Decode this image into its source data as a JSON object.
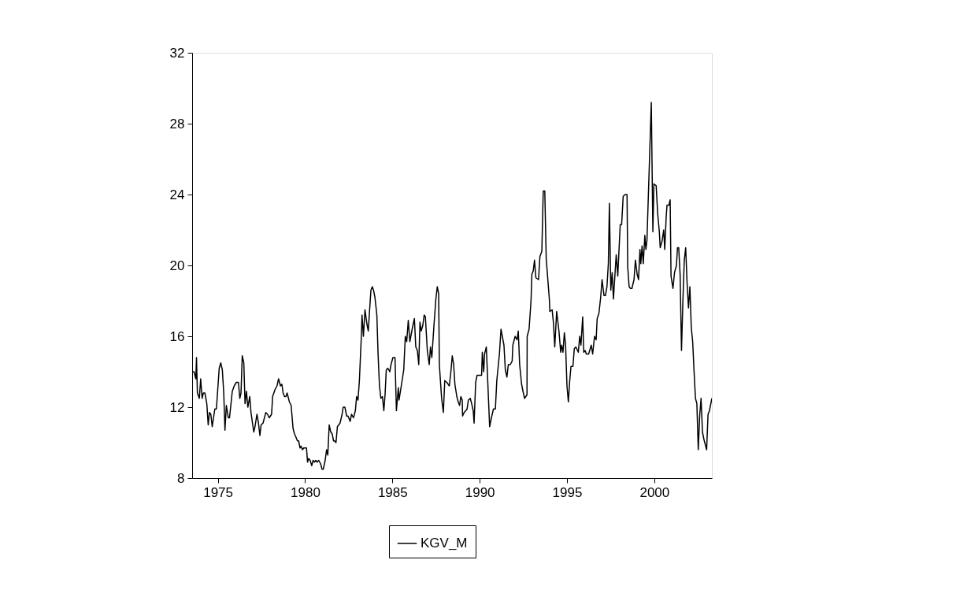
{
  "chart_data": {
    "type": "line",
    "xlim": [
      1973.53,
      2003.3
    ],
    "xticks": [
      1975,
      1980,
      1985,
      1990,
      1995,
      2000
    ],
    "ylim": [
      8,
      32
    ],
    "yticks": [
      8,
      12,
      16,
      20,
      24,
      28,
      32
    ],
    "grid": false,
    "legend": "bottom",
    "line_style": "solid",
    "series": [
      {
        "name": "KGV_M",
        "color": "#000000",
        "x": [
          1973.53,
          1973.64,
          1973.74,
          1973.78,
          1973.83,
          1973.94,
          1974.02,
          1974.1,
          1974.17,
          1974.26,
          1974.37,
          1974.45,
          1974.52,
          1974.6,
          1974.68,
          1974.83,
          1974.92,
          1975.08,
          1975.17,
          1975.26,
          1975.34,
          1975.41,
          1975.49,
          1975.6,
          1975.67,
          1975.83,
          1975.94,
          1976.06,
          1976.18,
          1976.26,
          1976.33,
          1976.4,
          1976.49,
          1976.56,
          1976.64,
          1976.72,
          1976.83,
          1976.9,
          1977.06,
          1977.13,
          1977.24,
          1977.33,
          1977.41,
          1977.48,
          1977.59,
          1977.75,
          1977.85,
          1977.94,
          1978.08,
          1978.14,
          1978.28,
          1978.39,
          1978.48,
          1978.59,
          1978.67,
          1978.74,
          1978.82,
          1978.9,
          1978.97,
          1979.1,
          1979.2,
          1979.31,
          1979.39,
          1979.48,
          1979.56,
          1979.63,
          1979.71,
          1979.77,
          1979.85,
          1979.92,
          1980.0,
          1980.08,
          1980.14,
          1980.2,
          1980.29,
          1980.38,
          1980.46,
          1980.54,
          1980.61,
          1980.69,
          1980.78,
          1980.89,
          1980.97,
          1981.04,
          1981.15,
          1981.23,
          1981.3,
          1981.38,
          1981.47,
          1981.55,
          1981.63,
          1981.69,
          1981.77,
          1981.85,
          1982.0,
          1982.12,
          1982.18,
          1982.28,
          1982.38,
          1982.46,
          1982.58,
          1982.66,
          1982.77,
          1982.88,
          1982.95,
          1983.03,
          1983.11,
          1983.23,
          1983.26,
          1983.34,
          1983.43,
          1983.54,
          1983.62,
          1983.69,
          1983.77,
          1983.85,
          1983.92,
          1984.0,
          1984.11,
          1984.18,
          1984.26,
          1984.34,
          1984.43,
          1984.51,
          1984.58,
          1984.65,
          1984.74,
          1984.85,
          1984.92,
          1985.03,
          1985.15,
          1985.23,
          1985.34,
          1985.38,
          1985.54,
          1985.65,
          1985.74,
          1985.82,
          1985.91,
          1986.0,
          1986.15,
          1986.26,
          1986.34,
          1986.43,
          1986.51,
          1986.58,
          1986.65,
          1986.74,
          1986.82,
          1986.89,
          1987.0,
          1987.11,
          1987.18,
          1987.26,
          1987.38,
          1987.49,
          1987.57,
          1987.65,
          1987.69,
          1987.82,
          1987.92,
          1988.0,
          1988.12,
          1988.26,
          1988.35,
          1988.43,
          1988.51,
          1988.58,
          1988.69,
          1988.77,
          1988.85,
          1988.92,
          1989.0,
          1989.02,
          1989.11,
          1989.2,
          1989.28,
          1989.35,
          1989.46,
          1989.54,
          1989.63,
          1989.68,
          1989.77,
          1989.85,
          1989.95,
          1990.11,
          1990.15,
          1990.23,
          1990.28,
          1990.38,
          1990.46,
          1990.57,
          1990.67,
          1990.79,
          1990.9,
          1990.98,
          1991.13,
          1991.22,
          1991.39,
          1991.47,
          1991.56,
          1991.64,
          1991.75,
          1991.86,
          1991.9,
          1992.03,
          1992.14,
          1992.21,
          1992.29,
          1992.4,
          1992.48,
          1992.57,
          1992.71,
          1992.72,
          1992.83,
          1992.94,
          1992.99,
          1993.07,
          1993.14,
          1993.22,
          1993.37,
          1993.45,
          1993.56,
          1993.64,
          1993.73,
          1993.81,
          1993.99,
          1994.02,
          1994.15,
          1994.23,
          1994.3,
          1994.41,
          1994.54,
          1994.64,
          1994.69,
          1994.77,
          1994.85,
          1994.92,
          1995.0,
          1995.08,
          1995.15,
          1995.23,
          1995.34,
          1995.42,
          1995.51,
          1995.65,
          1995.73,
          1995.8,
          1995.9,
          1995.96,
          1996.04,
          1996.11,
          1996.24,
          1996.39,
          1996.47,
          1996.58,
          1996.67,
          1996.73,
          1996.83,
          1996.93,
          1997.01,
          1997.12,
          1997.2,
          1997.29,
          1997.37,
          1997.43,
          1997.51,
          1997.59,
          1997.66,
          1997.82,
          1997.91,
          1998.05,
          1998.13,
          1998.22,
          1998.33,
          1998.44,
          1998.48,
          1998.56,
          1998.64,
          1998.72,
          1998.84,
          1998.92,
          1999.02,
          1999.1,
          1999.18,
          1999.23,
          1999.3,
          1999.37,
          1999.46,
          1999.52,
          1999.58,
          1999.83,
          1999.92,
          1999.98,
          2000.11,
          2000.19,
          2000.29,
          2000.34,
          2000.45,
          2000.54,
          2000.6,
          2000.68,
          2000.73,
          2000.84,
          2000.91,
          2000.96,
          2001.07,
          2001.16,
          2001.27,
          2001.33,
          2001.4,
          2001.48,
          2001.56,
          2001.64,
          2001.72,
          2001.8,
          2001.88,
          2001.96,
          2002.04,
          2002.12,
          2002.2,
          2002.28,
          2002.36,
          2002.44,
          2002.52,
          2002.6,
          2002.68,
          2002.76,
          2002.84,
          2002.92,
          2003.0,
          2003.08,
          2003.16,
          2003.3
        ],
        "values": [
          14.0,
          14.0,
          13.6,
          14.8,
          12.8,
          12.5,
          13.6,
          12.5,
          12.8,
          12.8,
          12.2,
          11.0,
          11.7,
          11.6,
          10.9,
          11.9,
          11.9,
          14.2,
          14.5,
          14.1,
          12.8,
          10.7,
          12.1,
          11.4,
          11.4,
          12.9,
          13.2,
          13.4,
          13.4,
          12.5,
          12.8,
          14.9,
          14.5,
          12.2,
          12.9,
          12.0,
          12.6,
          11.7,
          10.6,
          10.9,
          11.6,
          11.1,
          10.4,
          11.0,
          11.1,
          11.7,
          11.6,
          11.4,
          11.6,
          12.6,
          13.0,
          13.2,
          13.6,
          13.2,
          13.3,
          12.8,
          12.6,
          12.6,
          12.8,
          12.3,
          12.1,
          10.8,
          10.5,
          10.3,
          10.1,
          10.1,
          9.7,
          9.8,
          9.6,
          9.7,
          9.7,
          9.7,
          8.9,
          9.1,
          9.0,
          8.7,
          9.0,
          8.9,
          9.0,
          8.9,
          9.0,
          8.8,
          8.5,
          8.5,
          9.0,
          9.6,
          9.3,
          11.0,
          10.6,
          10.5,
          10.1,
          10.1,
          10.0,
          10.9,
          11.1,
          11.6,
          12.0,
          12.0,
          11.5,
          11.5,
          11.2,
          11.6,
          11.4,
          11.8,
          12.6,
          12.4,
          13.5,
          16.2,
          17.2,
          16.0,
          17.5,
          16.7,
          16.3,
          17.4,
          18.6,
          18.8,
          18.6,
          18.2,
          17.2,
          15.0,
          13.2,
          12.5,
          12.6,
          11.8,
          12.7,
          14.1,
          14.2,
          14.0,
          14.4,
          14.8,
          14.8,
          11.8,
          13.1,
          12.4,
          13.4,
          14.1,
          16.0,
          15.7,
          16.9,
          15.7,
          16.5,
          17.0,
          15.4,
          15.2,
          14.4,
          16.8,
          16.3,
          16.6,
          17.2,
          17.1,
          15.2,
          14.4,
          15.4,
          14.8,
          16.6,
          18.1,
          18.8,
          18.4,
          14.4,
          12.5,
          11.7,
          13.5,
          13.4,
          13.2,
          14.0,
          14.9,
          14.4,
          13.3,
          12.6,
          12.3,
          12.1,
          12.6,
          12.4,
          11.5,
          11.7,
          11.8,
          11.9,
          12.4,
          12.5,
          12.2,
          11.8,
          11.1,
          13.4,
          13.8,
          13.8,
          13.8,
          15.1,
          14.0,
          15.0,
          15.4,
          13.5,
          10.9,
          11.4,
          11.9,
          11.9,
          13.5,
          15.0,
          16.4,
          15.5,
          14.1,
          13.7,
          14.4,
          14.4,
          14.6,
          15.5,
          16.0,
          15.8,
          16.3,
          14.4,
          13.3,
          12.9,
          12.5,
          12.7,
          16.0,
          16.4,
          18.0,
          19.5,
          19.7,
          20.3,
          19.3,
          19.2,
          20.5,
          20.8,
          24.2,
          24.2,
          20.4,
          18.1,
          17.4,
          17.5,
          16.7,
          15.4,
          17.4,
          16.3,
          15.1,
          15.5,
          15.1,
          16.2,
          15.5,
          13.2,
          12.3,
          13.4,
          14.3,
          14.3,
          15.3,
          15.4,
          15.1,
          16.0,
          15.5,
          17.1,
          15.1,
          15.2,
          15.0,
          15.0,
          15.5,
          15.0,
          16.0,
          15.8,
          17.0,
          17.3,
          18.2,
          19.2,
          18.3,
          18.3,
          18.8,
          20.1,
          23.5,
          18.6,
          19.6,
          18.1,
          20.6,
          19.4,
          22.3,
          22.3,
          23.9,
          24.0,
          24.0,
          19.9,
          18.8,
          18.7,
          18.7,
          19.2,
          20.3,
          19.5,
          19.2,
          20.9,
          20.1,
          21.1,
          20.1,
          21.7,
          20.9,
          21.4,
          29.2,
          21.9,
          24.6,
          24.5,
          23.0,
          21.9,
          21.0,
          21.4,
          22.0,
          20.9,
          22.7,
          23.4,
          23.4,
          23.7,
          19.4,
          18.7,
          19.6,
          20.0,
          21.0,
          21.0,
          19.5,
          15.2,
          18.0,
          20.3,
          21.0,
          19.0,
          17.6,
          18.8,
          16.5,
          15.7,
          14.0,
          12.5,
          12.2,
          9.6,
          11.5,
          12.5,
          10.6,
          10.2,
          9.9,
          9.6,
          11.6,
          11.8,
          12.5
        ]
      }
    ]
  }
}
